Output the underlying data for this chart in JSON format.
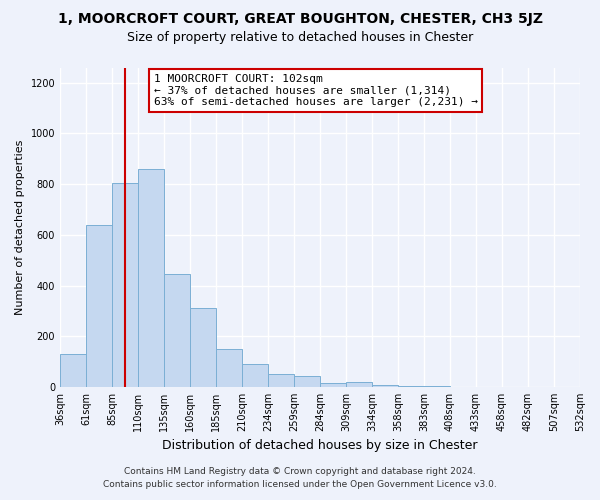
{
  "title": "1, MOORCROFT COURT, GREAT BOUGHTON, CHESTER, CH3 5JZ",
  "subtitle": "Size of property relative to detached houses in Chester",
  "xlabel": "Distribution of detached houses by size in Chester",
  "ylabel": "Number of detached properties",
  "bar_values": [
    130,
    640,
    805,
    860,
    445,
    310,
    150,
    90,
    52,
    42,
    15,
    20,
    8,
    3,
    2,
    1,
    1,
    0,
    0,
    0
  ],
  "tick_labels": [
    "36sqm",
    "61sqm",
    "85sqm",
    "110sqm",
    "135sqm",
    "160sqm",
    "185sqm",
    "210sqm",
    "234sqm",
    "259sqm",
    "284sqm",
    "309sqm",
    "334sqm",
    "358sqm",
    "383sqm",
    "408sqm",
    "433sqm",
    "458sqm",
    "482sqm",
    "507sqm",
    "532sqm"
  ],
  "bar_color": "#c5d8f0",
  "bar_edge_color": "#7bafd4",
  "vline_x": 2.5,
  "vline_color": "#cc0000",
  "ylim": [
    0,
    1260
  ],
  "yticks": [
    0,
    200,
    400,
    600,
    800,
    1000,
    1200
  ],
  "annotation_title": "1 MOORCROFT COURT: 102sqm",
  "annotation_line1": "← 37% of detached houses are smaller (1,314)",
  "annotation_line2": "63% of semi-detached houses are larger (2,231) →",
  "annotation_box_color": "white",
  "annotation_box_edge": "#cc0000",
  "footer1": "Contains HM Land Registry data © Crown copyright and database right 2024.",
  "footer2": "Contains public sector information licensed under the Open Government Licence v3.0.",
  "bg_color": "#eef2fb",
  "plot_bg_color": "#eef2fb",
  "grid_color": "#ffffff",
  "title_fontsize": 10,
  "subtitle_fontsize": 9,
  "ylabel_fontsize": 8,
  "xlabel_fontsize": 9,
  "tick_fontsize": 7,
  "annotation_fontsize": 8,
  "footer_fontsize": 6.5
}
